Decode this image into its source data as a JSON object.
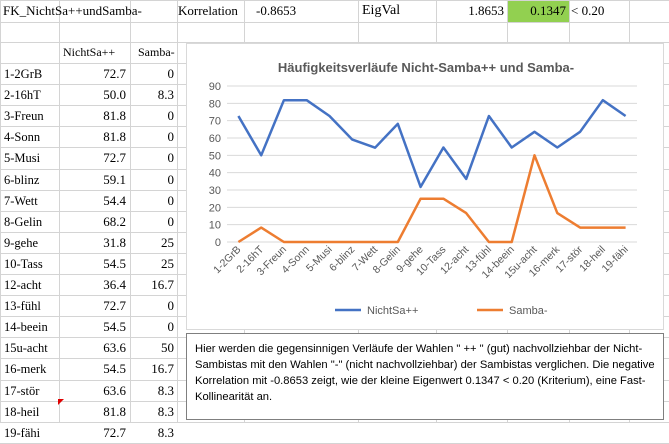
{
  "header": {
    "title": "FK_NichtSa++undSamba-",
    "korrelation_label": "Korrelation",
    "korrelation_value": "-0.8653",
    "eigval_label": "EigVal",
    "eigval_1": "1.8653",
    "eigval_2": "0.1347",
    "criterion": "< 0.20",
    "highlight_color": "#92d050"
  },
  "table": {
    "col1": "NichtSa++",
    "col2": "Samba-",
    "rows": [
      {
        "label": "1-2GrB",
        "a": "72.7",
        "b": "0"
      },
      {
        "label": "2-16hT",
        "a": "50.0",
        "b": "8.3"
      },
      {
        "label": "3-Freun",
        "a": "81.8",
        "b": "0"
      },
      {
        "label": "4-Sonn",
        "a": "81.8",
        "b": "0"
      },
      {
        "label": "5-Musi",
        "a": "72.7",
        "b": "0"
      },
      {
        "label": "6-blinz",
        "a": "59.1",
        "b": "0"
      },
      {
        "label": "7-Wett",
        "a": "54.4",
        "b": "0"
      },
      {
        "label": "8-Gelin",
        "a": "68.2",
        "b": "0"
      },
      {
        "label": "9-gehe",
        "a": "31.8",
        "b": "25"
      },
      {
        "label": "10-Tass",
        "a": "54.5",
        "b": "25"
      },
      {
        "label": "12-acht",
        "a": "36.4",
        "b": "16.7"
      },
      {
        "label": "13-fühl",
        "a": "72.7",
        "b": "0"
      },
      {
        "label": "14-beein",
        "a": "54.5",
        "b": "0"
      },
      {
        "label": "15u-acht",
        "a": "63.6",
        "b": "50"
      },
      {
        "label": "16-merk",
        "a": "54.5",
        "b": "16.7"
      },
      {
        "label": "17-stör",
        "a": "63.6",
        "b": "8.3"
      },
      {
        "label": "18-heil",
        "a": "81.8",
        "b": "8.3"
      },
      {
        "label": "19-fähi",
        "a": "72.7",
        "b": "8.3"
      }
    ]
  },
  "chart_data": {
    "type": "line",
    "title": "Häufigkeitsverläufe Nicht-Samba++ und Samba-",
    "categories": [
      "1-2GrB",
      "2-16hT",
      "3-Freun",
      "4-Sonn",
      "5-Musi",
      "6-blinz",
      "7-Wett",
      "8-Gelin",
      "9-gehe",
      "10-Tass",
      "12-acht",
      "13-fühl",
      "14-beein",
      "15u-acht",
      "16-merk",
      "17-stör",
      "18-heil",
      "19-fähi"
    ],
    "series": [
      {
        "name": "NichtSa++",
        "color": "#4472c4",
        "values": [
          72.7,
          50.0,
          81.8,
          81.8,
          72.7,
          59.1,
          54.4,
          68.2,
          31.8,
          54.5,
          36.4,
          72.7,
          54.5,
          63.6,
          54.5,
          63.6,
          81.8,
          72.7
        ]
      },
      {
        "name": "Samba-",
        "color": "#ed7d31",
        "values": [
          0,
          8.3,
          0,
          0,
          0,
          0,
          0,
          0,
          25,
          25,
          16.7,
          0,
          0,
          50,
          16.7,
          8.3,
          8.3,
          8.3
        ]
      }
    ],
    "ylim": [
      0,
      90
    ],
    "yticks": [
      "0",
      "10",
      "20",
      "30",
      "40",
      "50",
      "60",
      "70",
      "80",
      "90"
    ],
    "grid": true,
    "legend": "bottom"
  },
  "note": "Hier werden die gegensinnigen Verläufe der Wahlen \" ++ \" (gut) nachvollziehbar der Nicht-Sambistas mit den Wahlen \"-\" (nicht nachvollziehbar) der Sambistas verglichen. Die negative Korrelation mit -0.8653 zeigt, wie der kleine Eigenwert 0.1347 < 0.20 (Kriterium), eine Fast-Kollinearität an."
}
